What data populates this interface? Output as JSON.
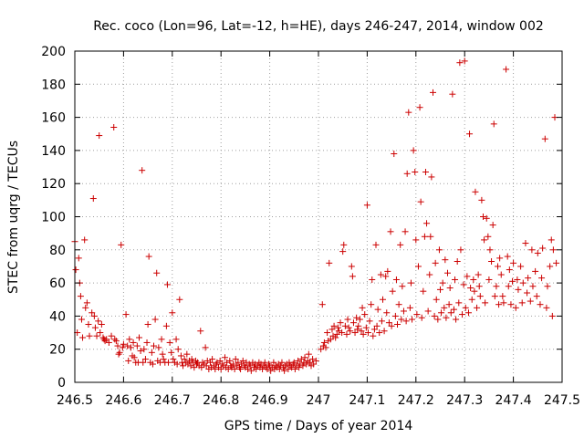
{
  "chart_data": {
    "type": "scatter",
    "title": "Rec. coco (Lon=96, Lat=-12, h=HE), days 246-247, 2014, window 002",
    "xlabel": "GPS time / Days of year 2014",
    "ylabel": "STEC from uqrg / TECUs",
    "xlim": [
      246.5,
      247.5
    ],
    "ylim": [
      0,
      200
    ],
    "xticks": [
      246.5,
      246.6,
      246.7,
      246.8,
      246.9,
      247,
      247.1,
      247.2,
      247.3,
      247.4,
      247.5
    ],
    "xtick_labels": [
      "246.5",
      "246.6",
      "246.7",
      "246.8",
      "246.9",
      "247",
      "247.1",
      "247.2",
      "247.3",
      "247.4",
      "247.5"
    ],
    "yticks": [
      0,
      20,
      40,
      60,
      80,
      100,
      120,
      140,
      160,
      180,
      200
    ],
    "ytick_labels": [
      "0",
      "20",
      "40",
      "60",
      "80",
      "100",
      "120",
      "140",
      "160",
      "180",
      "200"
    ],
    "grid": true,
    "marker": "plus",
    "color": "#cc0000",
    "points": [
      [
        246.5,
        85
      ],
      [
        246.502,
        68
      ],
      [
        246.505,
        30
      ],
      [
        246.508,
        75
      ],
      [
        246.51,
        60
      ],
      [
        246.512,
        52
      ],
      [
        246.514,
        38
      ],
      [
        246.516,
        27
      ],
      [
        246.52,
        86
      ],
      [
        246.522,
        45
      ],
      [
        246.525,
        48
      ],
      [
        246.528,
        35
      ],
      [
        246.53,
        28
      ],
      [
        246.535,
        42
      ],
      [
        246.538,
        111
      ],
      [
        246.54,
        40
      ],
      [
        246.542,
        33
      ],
      [
        246.545,
        28
      ],
      [
        246.548,
        37
      ],
      [
        246.55,
        149
      ],
      [
        246.552,
        30
      ],
      [
        246.555,
        35
      ],
      [
        246.558,
        27
      ],
      [
        246.56,
        26
      ],
      [
        246.562,
        25
      ],
      [
        246.565,
        26
      ],
      [
        246.57,
        24
      ],
      [
        246.575,
        28
      ],
      [
        246.58,
        154
      ],
      [
        246.582,
        26
      ],
      [
        246.585,
        25
      ],
      [
        246.588,
        22
      ],
      [
        246.59,
        17
      ],
      [
        246.592,
        18
      ],
      [
        246.595,
        83
      ],
      [
        246.598,
        21
      ],
      [
        246.6,
        23
      ],
      [
        246.605,
        41
      ],
      [
        246.608,
        22
      ],
      [
        246.61,
        13
      ],
      [
        246.612,
        26
      ],
      [
        246.615,
        21
      ],
      [
        246.618,
        16
      ],
      [
        246.62,
        24
      ],
      [
        246.622,
        15
      ],
      [
        246.625,
        12
      ],
      [
        246.628,
        22
      ],
      [
        246.63,
        12
      ],
      [
        246.632,
        27
      ],
      [
        246.635,
        19
      ],
      [
        246.638,
        128
      ],
      [
        246.64,
        12
      ],
      [
        246.642,
        20
      ],
      [
        246.645,
        14
      ],
      [
        246.648,
        24
      ],
      [
        246.65,
        35
      ],
      [
        246.652,
        76
      ],
      [
        246.655,
        12
      ],
      [
        246.658,
        18
      ],
      [
        246.66,
        11
      ],
      [
        246.662,
        22
      ],
      [
        246.665,
        38
      ],
      [
        246.668,
        66
      ],
      [
        246.67,
        13
      ],
      [
        246.672,
        21
      ],
      [
        246.675,
        12
      ],
      [
        246.678,
        26
      ],
      [
        246.68,
        17
      ],
      [
        246.682,
        14
      ],
      [
        246.685,
        12
      ],
      [
        246.688,
        34
      ],
      [
        246.69,
        59
      ],
      [
        246.692,
        12
      ],
      [
        246.695,
        24
      ],
      [
        246.698,
        18
      ],
      [
        246.7,
        42
      ],
      [
        246.702,
        14
      ],
      [
        246.705,
        12
      ],
      [
        246.708,
        26
      ],
      [
        246.71,
        11
      ],
      [
        246.712,
        20
      ],
      [
        246.715,
        50
      ],
      [
        246.718,
        16
      ],
      [
        246.72,
        12
      ],
      [
        246.722,
        10
      ],
      [
        246.725,
        14
      ],
      [
        246.728,
        12
      ],
      [
        246.73,
        17
      ],
      [
        246.732,
        11
      ],
      [
        246.735,
        13
      ],
      [
        246.738,
        10
      ],
      [
        246.74,
        14
      ],
      [
        246.742,
        12
      ],
      [
        246.745,
        9
      ],
      [
        246.748,
        13
      ],
      [
        246.75,
        11
      ],
      [
        246.752,
        12
      ],
      [
        246.755,
        10
      ],
      [
        246.758,
        31
      ],
      [
        246.76,
        9
      ],
      [
        246.762,
        12
      ],
      [
        246.765,
        11
      ],
      [
        246.768,
        21
      ],
      [
        246.77,
        10
      ],
      [
        246.772,
        13
      ],
      [
        246.775,
        8
      ],
      [
        246.778,
        12
      ],
      [
        246.78,
        9
      ],
      [
        246.782,
        14
      ],
      [
        246.785,
        10
      ],
      [
        246.788,
        8
      ],
      [
        246.79,
        11
      ],
      [
        246.792,
        12
      ],
      [
        246.795,
        9
      ],
      [
        246.798,
        13
      ],
      [
        246.8,
        8
      ],
      [
        246.802,
        11
      ],
      [
        246.805,
        10
      ],
      [
        246.808,
        15
      ],
      [
        246.81,
        9
      ],
      [
        246.812,
        12
      ],
      [
        246.815,
        8
      ],
      [
        246.818,
        13
      ],
      [
        246.82,
        10
      ],
      [
        246.822,
        9
      ],
      [
        246.825,
        11
      ],
      [
        246.828,
        8
      ],
      [
        246.83,
        14
      ],
      [
        246.832,
        10
      ],
      [
        246.835,
        12
      ],
      [
        246.838,
        9
      ],
      [
        246.84,
        8
      ],
      [
        246.842,
        11
      ],
      [
        246.845,
        13
      ],
      [
        246.848,
        10
      ],
      [
        246.85,
        9
      ],
      [
        246.852,
        12
      ],
      [
        246.855,
        8
      ],
      [
        246.858,
        11
      ],
      [
        246.86,
        10
      ],
      [
        246.862,
        7
      ],
      [
        246.865,
        12
      ],
      [
        246.868,
        9
      ],
      [
        246.87,
        11
      ],
      [
        246.872,
        8
      ],
      [
        246.875,
        10
      ],
      [
        246.878,
        12
      ],
      [
        246.88,
        9
      ],
      [
        246.882,
        11
      ],
      [
        246.885,
        8
      ],
      [
        246.888,
        10
      ],
      [
        246.89,
        12
      ],
      [
        246.892,
        9
      ],
      [
        246.895,
        8
      ],
      [
        246.898,
        11
      ],
      [
        246.9,
        10
      ],
      [
        246.902,
        7
      ],
      [
        246.905,
        9
      ],
      [
        246.908,
        12
      ],
      [
        246.91,
        8
      ],
      [
        246.912,
        10
      ],
      [
        246.915,
        9
      ],
      [
        246.918,
        11
      ],
      [
        246.92,
        8
      ],
      [
        246.922,
        10
      ],
      [
        246.925,
        12
      ],
      [
        246.928,
        9
      ],
      [
        246.93,
        7
      ],
      [
        246.932,
        10
      ],
      [
        246.935,
        11
      ],
      [
        246.938,
        8
      ],
      [
        246.94,
        12
      ],
      [
        246.942,
        10
      ],
      [
        246.945,
        9
      ],
      [
        246.948,
        11
      ],
      [
        246.95,
        12
      ],
      [
        246.952,
        8
      ],
      [
        246.955,
        10
      ],
      [
        246.958,
        13
      ],
      [
        246.96,
        9
      ],
      [
        246.962,
        11
      ],
      [
        246.965,
        14
      ],
      [
        246.968,
        10
      ],
      [
        246.97,
        12
      ],
      [
        246.972,
        15
      ],
      [
        246.975,
        11
      ],
      [
        246.978,
        13
      ],
      [
        246.98,
        17
      ],
      [
        246.982,
        12
      ],
      [
        246.985,
        10
      ],
      [
        246.988,
        14
      ],
      [
        246.99,
        11
      ],
      [
        246.995,
        13
      ],
      [
        247.005,
        20
      ],
      [
        247.008,
        47
      ],
      [
        247.01,
        22
      ],
      [
        247.012,
        24
      ],
      [
        247.015,
        21
      ],
      [
        247.018,
        30
      ],
      [
        247.02,
        25
      ],
      [
        247.022,
        72
      ],
      [
        247.025,
        26
      ],
      [
        247.028,
        32
      ],
      [
        247.03,
        28
      ],
      [
        247.032,
        34
      ],
      [
        247.035,
        27
      ],
      [
        247.038,
        29
      ],
      [
        247.04,
        33
      ],
      [
        247.042,
        31
      ],
      [
        247.045,
        36
      ],
      [
        247.048,
        30
      ],
      [
        247.05,
        79
      ],
      [
        247.052,
        83
      ],
      [
        247.055,
        34
      ],
      [
        247.058,
        29
      ],
      [
        247.06,
        38
      ],
      [
        247.062,
        33
      ],
      [
        247.065,
        31
      ],
      [
        247.068,
        70
      ],
      [
        247.07,
        64
      ],
      [
        247.072,
        36
      ],
      [
        247.075,
        30
      ],
      [
        247.078,
        39
      ],
      [
        247.08,
        32
      ],
      [
        247.082,
        34
      ],
      [
        247.085,
        38
      ],
      [
        247.088,
        31
      ],
      [
        247.09,
        45
      ],
      [
        247.092,
        29
      ],
      [
        247.095,
        41
      ],
      [
        247.098,
        33
      ],
      [
        247.1,
        107
      ],
      [
        247.102,
        30
      ],
      [
        247.105,
        37
      ],
      [
        247.108,
        47
      ],
      [
        247.11,
        62
      ],
      [
        247.112,
        28
      ],
      [
        247.115,
        32
      ],
      [
        247.118,
        83
      ],
      [
        247.12,
        34
      ],
      [
        247.122,
        44
      ],
      [
        247.125,
        30
      ],
      [
        247.128,
        65
      ],
      [
        247.13,
        37
      ],
      [
        247.132,
        50
      ],
      [
        247.135,
        31
      ],
      [
        247.138,
        64
      ],
      [
        247.14,
        42
      ],
      [
        247.142,
        67
      ],
      [
        247.145,
        36
      ],
      [
        247.148,
        91
      ],
      [
        247.15,
        34
      ],
      [
        247.152,
        55
      ],
      [
        247.155,
        138
      ],
      [
        247.158,
        40
      ],
      [
        247.16,
        62
      ],
      [
        247.162,
        35
      ],
      [
        247.165,
        47
      ],
      [
        247.168,
        83
      ],
      [
        247.17,
        38
      ],
      [
        247.172,
        58
      ],
      [
        247.175,
        43
      ],
      [
        247.178,
        91
      ],
      [
        247.18,
        37
      ],
      [
        247.182,
        126
      ],
      [
        247.185,
        163
      ],
      [
        247.188,
        45
      ],
      [
        247.19,
        60
      ],
      [
        247.192,
        38
      ],
      [
        247.195,
        140
      ],
      [
        247.198,
        127
      ],
      [
        247.2,
        86
      ],
      [
        247.202,
        41
      ],
      [
        247.205,
        70
      ],
      [
        247.208,
        166
      ],
      [
        247.21,
        109
      ],
      [
        247.212,
        39
      ],
      [
        247.215,
        55
      ],
      [
        247.218,
        88
      ],
      [
        247.22,
        127
      ],
      [
        247.222,
        96
      ],
      [
        247.225,
        43
      ],
      [
        247.228,
        65
      ],
      [
        247.23,
        88
      ],
      [
        247.232,
        124
      ],
      [
        247.235,
        175
      ],
      [
        247.238,
        40
      ],
      [
        247.24,
        72
      ],
      [
        247.242,
        50
      ],
      [
        247.245,
        38
      ],
      [
        247.248,
        80
      ],
      [
        247.25,
        56
      ],
      [
        247.252,
        42
      ],
      [
        247.255,
        60
      ],
      [
        247.258,
        45
      ],
      [
        247.26,
        74
      ],
      [
        247.262,
        39
      ],
      [
        247.265,
        66
      ],
      [
        247.268,
        47
      ],
      [
        247.27,
        57
      ],
      [
        247.272,
        42
      ],
      [
        247.275,
        174
      ],
      [
        247.278,
        44
      ],
      [
        247.28,
        62
      ],
      [
        247.282,
        38
      ],
      [
        247.285,
        73
      ],
      [
        247.288,
        48
      ],
      [
        247.29,
        193
      ],
      [
        247.292,
        80
      ],
      [
        247.295,
        41
      ],
      [
        247.298,
        59
      ],
      [
        247.3,
        194
      ],
      [
        247.302,
        45
      ],
      [
        247.305,
        64
      ],
      [
        247.308,
        42
      ],
      [
        247.31,
        150
      ],
      [
        247.312,
        57
      ],
      [
        247.315,
        50
      ],
      [
        247.318,
        62
      ],
      [
        247.32,
        55
      ],
      [
        247.322,
        115
      ],
      [
        247.325,
        45
      ],
      [
        247.328,
        65
      ],
      [
        247.33,
        58
      ],
      [
        247.332,
        52
      ],
      [
        247.335,
        110
      ],
      [
        247.338,
        100
      ],
      [
        247.34,
        86
      ],
      [
        247.342,
        48
      ],
      [
        247.345,
        99
      ],
      [
        247.348,
        88
      ],
      [
        247.35,
        62
      ],
      [
        247.352,
        80
      ],
      [
        247.355,
        73
      ],
      [
        247.358,
        95
      ],
      [
        247.36,
        156
      ],
      [
        247.362,
        52
      ],
      [
        247.365,
        58
      ],
      [
        247.368,
        70
      ],
      [
        247.37,
        47
      ],
      [
        247.372,
        75
      ],
      [
        247.375,
        65
      ],
      [
        247.378,
        52
      ],
      [
        247.38,
        48
      ],
      [
        247.385,
        189
      ],
      [
        247.388,
        76
      ],
      [
        247.39,
        58
      ],
      [
        247.392,
        68
      ],
      [
        247.395,
        47
      ],
      [
        247.398,
        61
      ],
      [
        247.4,
        72
      ],
      [
        247.405,
        45
      ],
      [
        247.408,
        62
      ],
      [
        247.41,
        56
      ],
      [
        247.415,
        70
      ],
      [
        247.418,
        48
      ],
      [
        247.42,
        60
      ],
      [
        247.425,
        84
      ],
      [
        247.428,
        54
      ],
      [
        247.43,
        63
      ],
      [
        247.435,
        49
      ],
      [
        247.438,
        80
      ],
      [
        247.44,
        58
      ],
      [
        247.445,
        67
      ],
      [
        247.448,
        52
      ],
      [
        247.45,
        78
      ],
      [
        247.455,
        47
      ],
      [
        247.458,
        63
      ],
      [
        247.46,
        81
      ],
      [
        247.465,
        147
      ],
      [
        247.468,
        45
      ],
      [
        247.47,
        58
      ],
      [
        247.475,
        70
      ],
      [
        247.478,
        86
      ],
      [
        247.48,
        40
      ],
      [
        247.482,
        80
      ],
      [
        247.485,
        160
      ],
      [
        247.488,
        72
      ]
    ]
  }
}
